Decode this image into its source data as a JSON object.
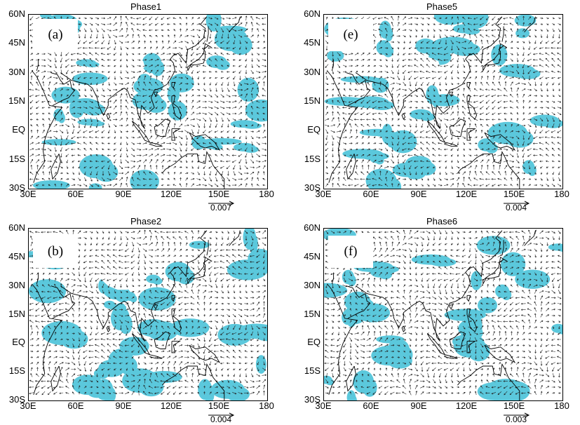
{
  "colors": {
    "shading": "#5bc8dc",
    "vector": "#222222",
    "coast": "#000000",
    "plateau": "#ffffff"
  },
  "y_axis_labels": [
    "60N",
    "45N",
    "30N",
    "15N",
    "EQ",
    "15S",
    "30S"
  ],
  "x_axis_labels": [
    "30E",
    "60E",
    "90E",
    "120E",
    "150E",
    "180"
  ],
  "panels": [
    {
      "title": "Phase1",
      "letter": "(a)",
      "ref_vector": "0.007"
    },
    {
      "title": "Phase5",
      "letter": "(e)",
      "ref_vector": "0.004"
    },
    {
      "title": "Phase2",
      "letter": "(b)",
      "ref_vector": "0.004"
    },
    {
      "title": "Phase6",
      "letter": "(f)",
      "ref_vector": "0.003"
    }
  ]
}
